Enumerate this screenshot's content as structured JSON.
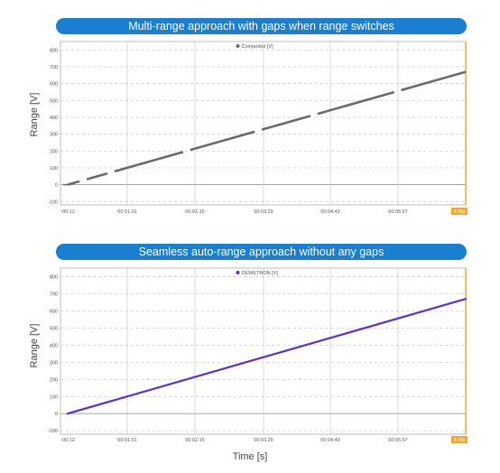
{
  "charts": [
    {
      "banner": "Multi-range approach with gaps when range switches",
      "ylabel": "Range [V]",
      "legend": "Competitor [V]",
      "cursor_label": "6.79e",
      "series_color": "#6a6a6a",
      "line_style": "dashed-segments"
    },
    {
      "banner": "Seamless auto-range approach without any gaps",
      "ylabel": "Range [V]",
      "legend": "DEWETRON [V]",
      "cursor_label": "6.79e",
      "series_color": "#5a2fd6",
      "line_style": "solid"
    }
  ],
  "xlabel": "Time [s]",
  "colors": {
    "banner": "#1a7fd0",
    "cursor": "#f0a830",
    "grid": "#c8c8c8"
  },
  "chart_data": [
    {
      "type": "line",
      "title": "Multi-range approach with gaps when range switches",
      "ylabel": "Range [V]",
      "xlabel": "Time [s]",
      "x_ticks": [
        "-00.12",
        "00:01.01",
        "00:02.15",
        "00:03.29",
        "00:04.43",
        "00:05.57"
      ],
      "y_ticks": [
        -100,
        0,
        100,
        200,
        300,
        400,
        500,
        600,
        700,
        800
      ],
      "ylim": [
        -120,
        850
      ],
      "grid": true,
      "legend_position": "top-center",
      "series": [
        {
          "name": "Competitor [V]",
          "x": [
            0.12,
            6.79
          ],
          "y": [
            0,
            670
          ],
          "note_visible": "line segments with small gaps at range switches"
        }
      ]
    },
    {
      "type": "line",
      "title": "Seamless auto-range approach without any gaps",
      "ylabel": "Range [V]",
      "xlabel": "Time [s]",
      "x_ticks": [
        "-00.12",
        "00:01.01",
        "00:02.15",
        "00:03.29",
        "00:04.43",
        "00:05.57"
      ],
      "y_ticks": [
        -100,
        0,
        100,
        200,
        300,
        400,
        500,
        600,
        700,
        800
      ],
      "ylim": [
        -120,
        850
      ],
      "grid": true,
      "legend_position": "top-center",
      "series": [
        {
          "name": "DEWETRON [V]",
          "x": [
            0.12,
            6.79
          ],
          "y": [
            0,
            670
          ]
        }
      ]
    }
  ]
}
